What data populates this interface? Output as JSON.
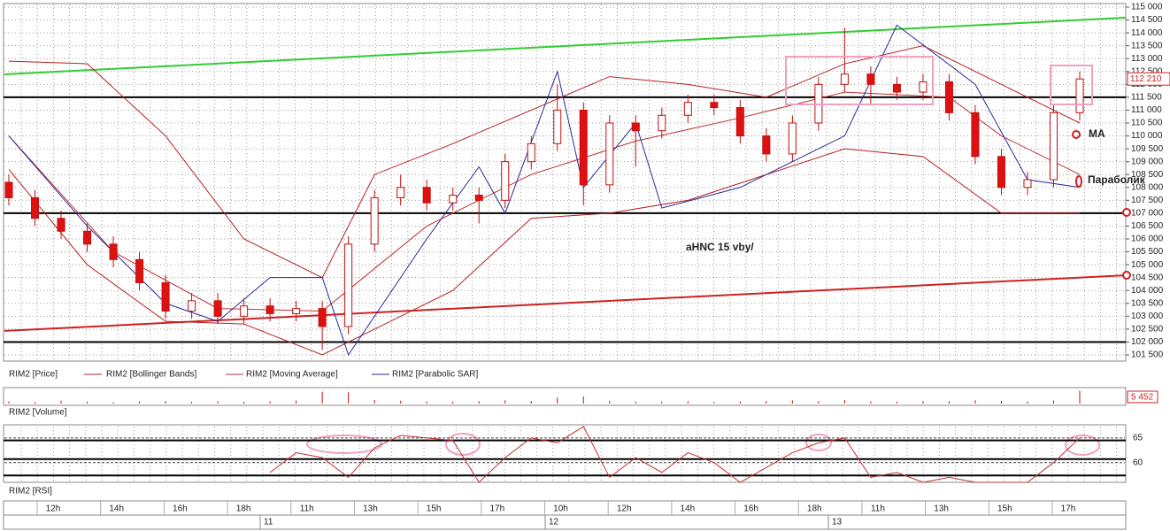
{
  "chart_data": {
    "type": "candlestick",
    "price_name": "RIM2 [Price]",
    "open": [
      108200,
      107600,
      106800,
      106300,
      105800,
      105200,
      104300,
      103200,
      103600,
      103000,
      103400,
      103100,
      103300,
      102600,
      105800,
      107600,
      108000,
      107400,
      107700,
      107500,
      109000,
      109700,
      111000,
      108100,
      110500,
      110200,
      110800,
      111300,
      111100,
      110000,
      109300,
      110500,
      112000,
      112400,
      112000,
      111700,
      112100,
      110900,
      109200,
      108000,
      108300,
      110900
    ],
    "high": [
      108500,
      107900,
      107100,
      106600,
      106100,
      105500,
      104600,
      103900,
      103900,
      103700,
      103700,
      103600,
      103600,
      106100,
      107900,
      108500,
      108300,
      108000,
      108000,
      109300,
      110000,
      112000,
      111300,
      110800,
      110800,
      111100,
      111600,
      111600,
      111400,
      110300,
      110800,
      112300,
      114200,
      112700,
      112300,
      112400,
      112400,
      111200,
      109500,
      108600,
      111200,
      112500
    ],
    "low": [
      107300,
      106500,
      106000,
      105500,
      104900,
      104000,
      102900,
      102900,
      102700,
      102700,
      102800,
      102800,
      101700,
      102300,
      105500,
      107300,
      107100,
      107100,
      106600,
      107200,
      108700,
      109400,
      107300,
      107800,
      108800,
      109900,
      110500,
      110800,
      109700,
      109000,
      109000,
      110200,
      111700,
      111200,
      111400,
      111400,
      110600,
      108900,
      107700,
      107700,
      108000,
      110600
    ],
    "close": [
      107600,
      106800,
      106300,
      105800,
      105200,
      104300,
      103200,
      103600,
      103000,
      103400,
      103100,
      103300,
      102600,
      105800,
      107600,
      108000,
      107400,
      107700,
      107500,
      109000,
      109700,
      111000,
      108100,
      110500,
      110200,
      110800,
      111300,
      111100,
      110000,
      109300,
      110500,
      112000,
      112400,
      112000,
      111700,
      112100,
      110900,
      109200,
      108000,
      108300,
      110900,
      112210
    ],
    "last_price_label": "112 210",
    "ylim": [
      101500,
      115000
    ],
    "yticks": [
      {
        "value": 101500,
        "label": "101 500"
      },
      {
        "value": 102000,
        "label": "102 000"
      },
      {
        "value": 102500,
        "label": "102 500"
      },
      {
        "value": 103000,
        "label": "103 000"
      },
      {
        "value": 103500,
        "label": "103 500"
      },
      {
        "value": 104000,
        "label": "104 000"
      },
      {
        "value": 104500,
        "label": "104 500"
      },
      {
        "value": 105000,
        "label": "105 000"
      },
      {
        "value": 105500,
        "label": "105 500"
      },
      {
        "value": 106000,
        "label": "106 000"
      },
      {
        "value": 106500,
        "label": "106 500"
      },
      {
        "value": 107000,
        "label": "107 000"
      },
      {
        "value": 107500,
        "label": "107 500"
      },
      {
        "value": 108000,
        "label": "108 000"
      },
      {
        "value": 108500,
        "label": "108 500"
      },
      {
        "value": 109000,
        "label": "109 000"
      },
      {
        "value": 109500,
        "label": "109 500"
      },
      {
        "value": 110000,
        "label": "110 000"
      },
      {
        "value": 110500,
        "label": "110 500"
      },
      {
        "value": 111000,
        "label": "111 000"
      },
      {
        "value": 111500,
        "label": "111 500"
      },
      {
        "value": 112000,
        "label": "112 000"
      },
      {
        "value": 112500,
        "label": "112 500"
      },
      {
        "value": 113000,
        "label": "113 000"
      },
      {
        "value": 113500,
        "label": "113 500"
      },
      {
        "value": 114000,
        "label": "114 000"
      },
      {
        "value": 114500,
        "label": "114 500"
      },
      {
        "value": 115000,
        "label": "115 000"
      }
    ],
    "levels": [
      111500,
      107000,
      102000
    ],
    "trend_lines": [
      {
        "color": "#33cc33",
        "values": [
          112390,
          114588
        ]
      },
      {
        "color": "#cc2222",
        "values": [
          102430,
          104590
        ]
      }
    ],
    "bollinger": {
      "name": "RIM2 [Bollinger Bands]",
      "color": "#b52020",
      "x": [
        0,
        3,
        6,
        9,
        12,
        14,
        17,
        20,
        23,
        26,
        29,
        32,
        35,
        38,
        41
      ],
      "upper": [
        112900,
        112800,
        110000,
        106000,
        104500,
        108500,
        109700,
        111000,
        112300,
        112000,
        111500,
        112800,
        113500,
        112000,
        110500
      ],
      "lower": [
        108700,
        105000,
        102800,
        102700,
        101500,
        102500,
        104000,
        106800,
        107000,
        107500,
        108500,
        109500,
        109200,
        107000,
        107000
      ]
    },
    "ma": {
      "name": "RIM2 [Moving Average]",
      "color": "#c03030",
      "x": [
        0,
        4,
        8,
        12,
        16,
        20,
        24,
        28,
        32,
        36,
        38,
        41
      ],
      "values": [
        110000,
        105500,
        103300,
        103200,
        106500,
        108500,
        109800,
        110700,
        111700,
        111500,
        110000,
        108500
      ]
    },
    "sar": {
      "name": "RIM2 [Parabolic SAR]",
      "color": "#2a2a9a",
      "x": [
        0,
        3,
        6,
        8,
        10,
        12,
        13,
        16,
        18,
        19,
        21,
        22,
        24,
        25,
        28,
        31,
        32,
        34,
        37,
        39,
        41
      ],
      "values": [
        110000,
        106500,
        103500,
        102800,
        104500,
        104500,
        101500,
        106000,
        108800,
        107000,
        112500,
        108000,
        110500,
        107200,
        108000,
        109500,
        110000,
        114300,
        112000,
        108300,
        108000
      ]
    },
    "annotations": [
      "aHNC   15 vby/",
      "MA",
      "Параболик"
    ],
    "volume": {
      "name": "RIM2 [Volume]",
      "ylim": [
        0,
        6000
      ],
      "values": [
        900,
        700,
        1200,
        800,
        600,
        900,
        1100,
        700,
        1000,
        800,
        900,
        1300,
        5000,
        4800,
        1500,
        1200,
        900,
        800,
        1000,
        1400,
        1100,
        2500,
        3000,
        1200,
        900,
        800,
        1000,
        700,
        900,
        1100,
        1300,
        1000,
        1500,
        900,
        800,
        1100,
        1000,
        1400,
        1200,
        900,
        1300,
        5452
      ],
      "last_label": "5 452"
    },
    "rsi": {
      "name": "RIM2 [RSI]",
      "ylim": [
        56,
        67.3
      ],
      "yticks": [
        65,
        60
      ],
      "levels": [
        64.5,
        60.7,
        57.4
      ],
      "x": [
        10,
        11,
        12,
        13,
        14,
        15,
        16,
        17,
        18,
        19,
        20,
        21,
        22,
        23,
        24,
        25,
        26,
        27,
        28,
        29,
        30,
        31,
        32,
        33,
        34,
        35,
        36,
        37,
        38,
        39,
        40,
        41
      ],
      "values": [
        58,
        62,
        61,
        57,
        63,
        65.5,
        65,
        64.5,
        56,
        61,
        65,
        64,
        67.3,
        57,
        61,
        58,
        62,
        60,
        56,
        59,
        62,
        64,
        65,
        57,
        58,
        56,
        57,
        56,
        56,
        56,
        60,
        65
      ]
    },
    "time_labels": [
      "12h",
      "14h",
      "16h",
      "18h",
      "11h",
      "13h",
      "15h",
      "17h",
      "10h",
      "12h",
      "14h",
      "16h",
      "18h",
      "11h",
      "13h",
      "15h",
      "17h"
    ],
    "dates": [
      "11",
      "12",
      "13"
    ]
  }
}
